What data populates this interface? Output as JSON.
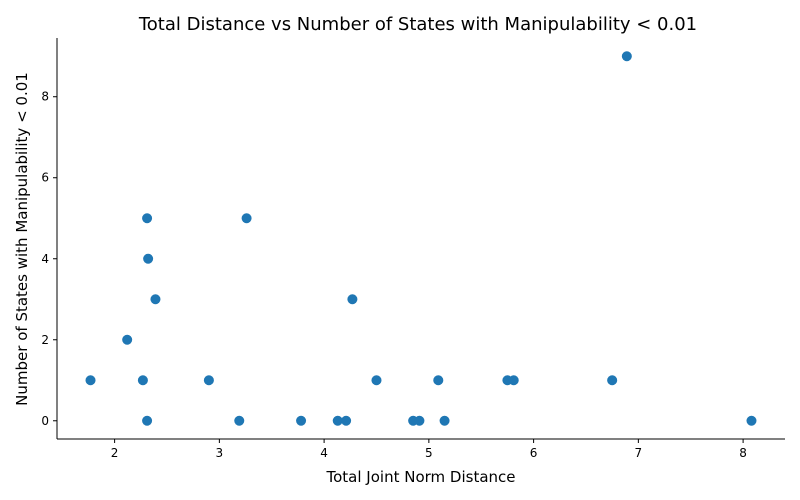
{
  "chart_data": {
    "type": "scatter",
    "title": "Total Distance vs Number of States with Manipulability < 0.01",
    "xlabel": "Total Joint Norm Distance",
    "ylabel": "Number of States with Manipulability < 0.01",
    "xlim": [
      1.45,
      8.4
    ],
    "ylim": [
      -0.45,
      9.45
    ],
    "xticks": [
      2,
      3,
      4,
      5,
      6,
      7,
      8
    ],
    "yticks": [
      0,
      2,
      4,
      6,
      8
    ],
    "grid": false,
    "marker_color": "#1f77b4",
    "series": [
      {
        "points": [
          {
            "x": 1.77,
            "y": 1
          },
          {
            "x": 2.12,
            "y": 2
          },
          {
            "x": 2.27,
            "y": 1
          },
          {
            "x": 2.31,
            "y": 5
          },
          {
            "x": 2.32,
            "y": 4
          },
          {
            "x": 2.31,
            "y": 0
          },
          {
            "x": 2.39,
            "y": 3
          },
          {
            "x": 2.9,
            "y": 1
          },
          {
            "x": 3.19,
            "y": 0
          },
          {
            "x": 3.26,
            "y": 5
          },
          {
            "x": 3.78,
            "y": 0
          },
          {
            "x": 4.13,
            "y": 0
          },
          {
            "x": 4.21,
            "y": 0
          },
          {
            "x": 4.27,
            "y": 3
          },
          {
            "x": 4.5,
            "y": 1
          },
          {
            "x": 4.85,
            "y": 0
          },
          {
            "x": 4.91,
            "y": 0
          },
          {
            "x": 5.09,
            "y": 1
          },
          {
            "x": 5.15,
            "y": 0
          },
          {
            "x": 5.75,
            "y": 1
          },
          {
            "x": 5.81,
            "y": 1
          },
          {
            "x": 6.75,
            "y": 1
          },
          {
            "x": 6.89,
            "y": 9
          },
          {
            "x": 8.08,
            "y": 0
          }
        ]
      }
    ]
  }
}
